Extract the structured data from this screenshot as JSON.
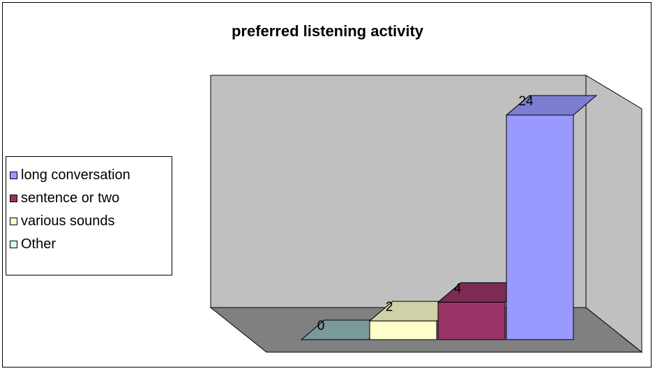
{
  "chart_data": {
    "type": "bar",
    "title": "preferred listening activity",
    "categories": [
      "Other",
      "various sounds",
      "sentence or two",
      "long conversation"
    ],
    "values": [
      0,
      2,
      4,
      24
    ],
    "ylim": [
      0,
      25
    ],
    "grid": false,
    "legend_position": "left",
    "legend": [
      {
        "label": "long conversation",
        "color": "#9999ff"
      },
      {
        "label": "sentence or two",
        "color": "#993366"
      },
      {
        "label": "various sounds",
        "color": "#ffffcc"
      },
      {
        "label": "Other",
        "color": "#ccffff"
      }
    ],
    "colors": {
      "wall": "#c0c0c0",
      "side_wall": "#c0c0c0",
      "floor": "#808080"
    }
  }
}
